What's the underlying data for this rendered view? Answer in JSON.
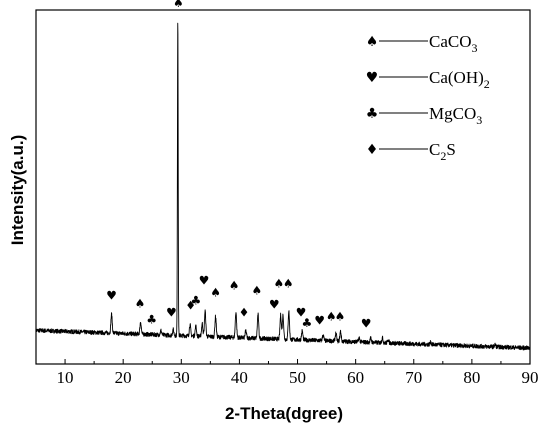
{
  "chart_data": {
    "type": "line",
    "title": "",
    "xlabel": "2-Theta(dgree)",
    "ylabel": "Intensity(a.u.)",
    "xlim": [
      5,
      90
    ],
    "ylim": [
      0,
      100
    ],
    "x_ticks": [
      "10",
      "20",
      "30",
      "40",
      "50",
      "60",
      "70",
      "80",
      "90"
    ],
    "y_ticks": [],
    "grid": false,
    "legend_position": "top-right",
    "legend": [
      {
        "symbol": "spade-icon",
        "glyph": "♠",
        "label_main": "CaCO",
        "label_sub": "3",
        "label_after": ""
      },
      {
        "symbol": "heart-icon",
        "glyph": "♥",
        "label_main": "Ca(OH)",
        "label_sub": "2",
        "label_after": ""
      },
      {
        "symbol": "club-icon",
        "glyph": "♣",
        "label_main": "MgCO",
        "label_sub": "3",
        "label_after": ""
      },
      {
        "symbol": "diamond-icon",
        "glyph": "♦",
        "label_main": "C",
        "label_sub": "2",
        "label_after": "S"
      }
    ],
    "baseline": {
      "start": 9.5,
      "end": 4.5,
      "noise": 0.6
    },
    "series": [
      {
        "peaks": [
          {
            "x": 18.0,
            "h": 5.3
          },
          {
            "x": 23.0,
            "h": 3.5
          },
          {
            "x": 26.5,
            "h": 1.2
          },
          {
            "x": 28.6,
            "h": 1.6
          },
          {
            "x": 29.4,
            "h": 89.7
          },
          {
            "x": 31.5,
            "h": 3.2
          },
          {
            "x": 32.5,
            "h": 2.8
          },
          {
            "x": 33.6,
            "h": 3.6
          },
          {
            "x": 34.1,
            "h": 7.2
          },
          {
            "x": 35.9,
            "h": 5.8
          },
          {
            "x": 39.4,
            "h": 7.2
          },
          {
            "x": 41.1,
            "h": 2.0
          },
          {
            "x": 43.2,
            "h": 6.8
          },
          {
            "x": 47.1,
            "h": 6.8
          },
          {
            "x": 47.5,
            "h": 6.8
          },
          {
            "x": 48.5,
            "h": 8.0
          },
          {
            "x": 50.8,
            "h": 2.5
          },
          {
            "x": 54.4,
            "h": 1.6
          },
          {
            "x": 56.6,
            "h": 2.2
          },
          {
            "x": 57.4,
            "h": 2.8
          },
          {
            "x": 60.6,
            "h": 1.2
          },
          {
            "x": 62.6,
            "h": 1.2
          },
          {
            "x": 64.6,
            "h": 1.4
          },
          {
            "x": 65.6,
            "h": 1.0
          },
          {
            "x": 72.9,
            "h": 0.6
          },
          {
            "x": 84.0,
            "h": 0.6
          }
        ]
      }
    ],
    "annotations": [
      {
        "glyph": "♥",
        "x": 18.0,
        "y": 18.2
      },
      {
        "glyph": "♠",
        "x": 22.9,
        "y": 15.9
      },
      {
        "glyph": "♣",
        "x": 24.9,
        "y": 11.4
      },
      {
        "glyph": "♥",
        "x": 28.3,
        "y": 13.4
      },
      {
        "glyph": "♠",
        "x": 29.5,
        "y": 100.8
      },
      {
        "glyph": "♦",
        "x": 31.6,
        "y": 15.4
      },
      {
        "glyph": "♣",
        "x": 32.5,
        "y": 16.8
      },
      {
        "glyph": "♥",
        "x": 33.9,
        "y": 22.5
      },
      {
        "glyph": "♠",
        "x": 35.9,
        "y": 19.1
      },
      {
        "glyph": "♠",
        "x": 39.1,
        "y": 21.1
      },
      {
        "glyph": "♦",
        "x": 40.8,
        "y": 13.4
      },
      {
        "glyph": "♠",
        "x": 43.0,
        "y": 19.7
      },
      {
        "glyph": "♥",
        "x": 46.0,
        "y": 15.7
      },
      {
        "glyph": "♠",
        "x": 46.8,
        "y": 21.6
      },
      {
        "glyph": "♠",
        "x": 48.4,
        "y": 21.6
      },
      {
        "glyph": "♥",
        "x": 50.6,
        "y": 13.4
      },
      {
        "glyph": "♣",
        "x": 51.6,
        "y": 10.5
      },
      {
        "glyph": "♥",
        "x": 53.8,
        "y": 11.1
      },
      {
        "glyph": "♠",
        "x": 55.8,
        "y": 12.3
      },
      {
        "glyph": "♠",
        "x": 57.3,
        "y": 12.3
      },
      {
        "glyph": "♥",
        "x": 61.8,
        "y": 10.3
      }
    ]
  }
}
